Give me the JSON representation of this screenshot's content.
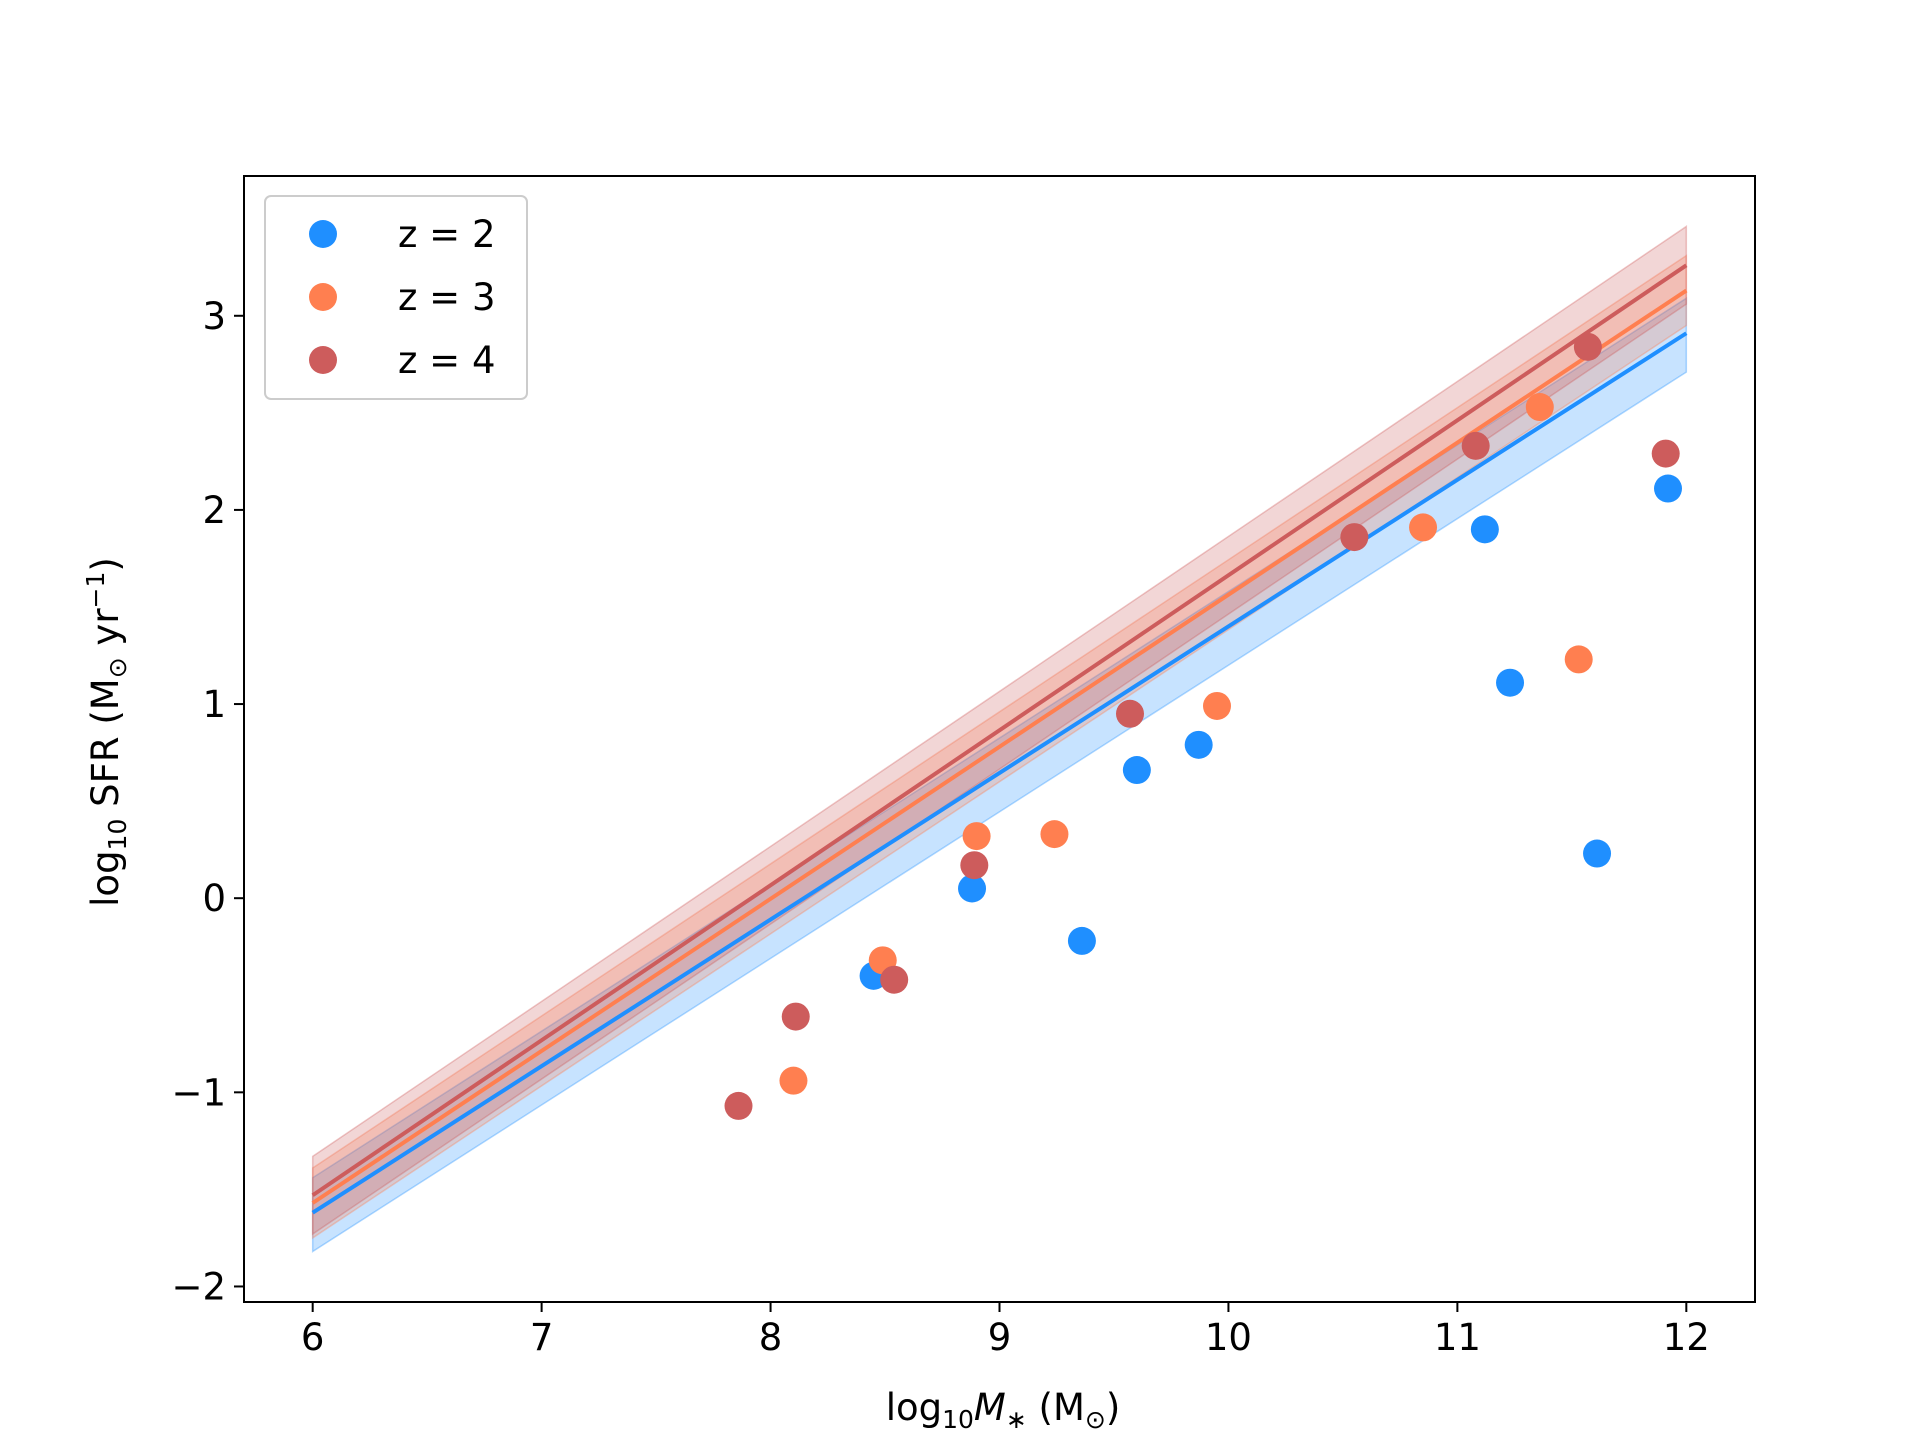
{
  "chart_data": {
    "type": "scatter",
    "xlabel": {
      "pre": "log",
      "sub": "10",
      "var": "M",
      "var_sub": "∗",
      "unit": " (M",
      "unit_sub": "⊙",
      "post": ")"
    },
    "ylabel": {
      "pre": "log",
      "sub": "10",
      "mid": " SFR (M",
      "unit_sub": "⊙",
      "mid2": " yr",
      "sup": "−1",
      "post": ")"
    },
    "xlim": [
      5.7,
      12.3
    ],
    "ylim": [
      -2.08,
      3.72
    ],
    "x_ticks": [
      6,
      7,
      8,
      9,
      10,
      11,
      12
    ],
    "y_ticks": [
      -2,
      -1,
      0,
      1,
      2,
      3
    ],
    "x_tick_labels": [
      "6",
      "7",
      "8",
      "9",
      "10",
      "11",
      "12"
    ],
    "y_tick_labels": [
      "−2",
      "−1",
      "0",
      "1",
      "2",
      "3"
    ],
    "legend_position": "upper-left",
    "series": [
      {
        "name": "z = 2",
        "color": "#1f8fff",
        "points": [
          [
            8.45,
            -0.4
          ],
          [
            8.88,
            0.05
          ],
          [
            9.36,
            -0.22
          ],
          [
            9.6,
            0.66
          ],
          [
            9.87,
            0.79
          ],
          [
            11.12,
            1.9
          ],
          [
            11.23,
            1.11
          ],
          [
            11.61,
            0.23
          ],
          [
            11.92,
            2.11
          ]
        ],
        "fit": {
          "x": [
            6,
            12
          ],
          "y": [
            -1.62,
            2.91
          ],
          "band_lower": [
            -1.82,
            2.71
          ],
          "band_upper": [
            -1.44,
            3.09
          ]
        }
      },
      {
        "name": "z = 3",
        "color": "#ff7f50",
        "points": [
          [
            8.1,
            -0.94
          ],
          [
            8.49,
            -0.32
          ],
          [
            8.9,
            0.32
          ],
          [
            9.24,
            0.33
          ],
          [
            9.95,
            0.99
          ],
          [
            10.85,
            1.91
          ],
          [
            11.36,
            2.53
          ],
          [
            11.53,
            1.23
          ]
        ],
        "fit": {
          "x": [
            6,
            12
          ],
          "y": [
            -1.57,
            3.13
          ],
          "band_lower": [
            -1.75,
            2.95
          ],
          "band_upper": [
            -1.39,
            3.31
          ]
        }
      },
      {
        "name": "z = 4",
        "color": "#cd5c5c",
        "points": [
          [
            7.86,
            -1.07
          ],
          [
            8.11,
            -0.61
          ],
          [
            8.54,
            -0.42
          ],
          [
            8.89,
            0.17
          ],
          [
            9.57,
            0.95
          ],
          [
            10.55,
            1.86
          ],
          [
            11.08,
            2.33
          ],
          [
            11.57,
            2.84
          ],
          [
            11.91,
            2.29
          ]
        ],
        "fit": {
          "x": [
            6,
            12
          ],
          "y": [
            -1.53,
            3.26
          ],
          "band_lower": [
            -1.73,
            3.06
          ],
          "band_upper": [
            -1.33,
            3.46
          ]
        }
      }
    ]
  }
}
